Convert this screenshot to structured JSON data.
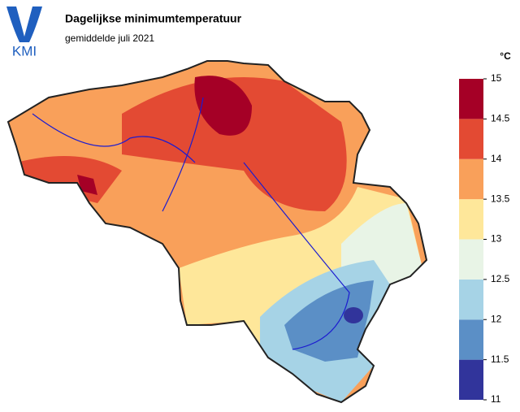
{
  "logo": "KMI",
  "header": {
    "title": "Dagelijkse minimumtemperatuur",
    "subtitle": "gemiddelde juli 2021"
  },
  "legend": {
    "unit": "°C",
    "ticks": [
      11,
      11.5,
      12,
      12.5,
      13,
      13.5,
      14,
      14.5,
      15
    ],
    "colors": [
      "#31349b",
      "#5b8fc6",
      "#a6d3e6",
      "#e8f4e6",
      "#fee79a",
      "#f9a05a",
      "#e34a33",
      "#a50026"
    ]
  }
}
